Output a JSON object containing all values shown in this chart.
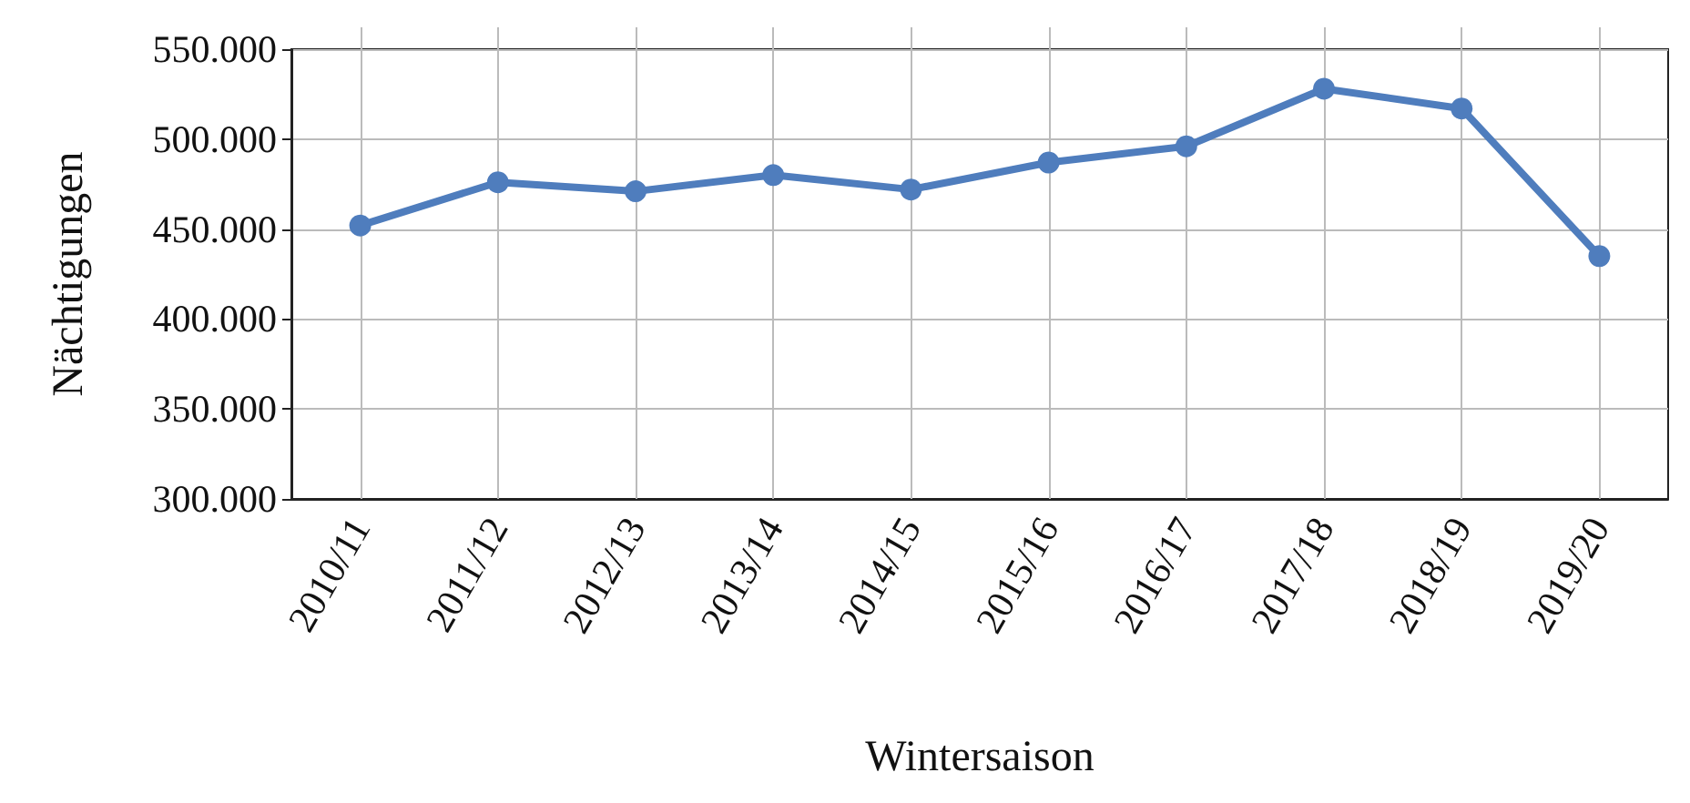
{
  "chart_data": {
    "type": "line",
    "xlabel": "Wintersaison",
    "ylabel": "Nächtigungen",
    "categories": [
      "2010/11",
      "2011/12",
      "2012/13",
      "2013/14",
      "2014/15",
      "2015/16",
      "2016/17",
      "2017/18",
      "2018/19",
      "2019/20"
    ],
    "series": [
      {
        "color": "#4f7dbd",
        "values": [
          452000,
          476000,
          471000,
          480000,
          472000,
          487000,
          496000,
          528000,
          517000,
          435000
        ]
      }
    ],
    "ylim": [
      300000,
      550000
    ],
    "yticks": [
      {
        "value": 300000,
        "label": "300.000"
      },
      {
        "value": 350000,
        "label": "350.000"
      },
      {
        "value": 400000,
        "label": "400.000"
      },
      {
        "value": 450000,
        "label": "450.000"
      },
      {
        "value": 500000,
        "label": "500.000"
      },
      {
        "value": 550000,
        "label": "550.000"
      }
    ],
    "grid": true,
    "marker": "circle",
    "line_style": "solid"
  }
}
